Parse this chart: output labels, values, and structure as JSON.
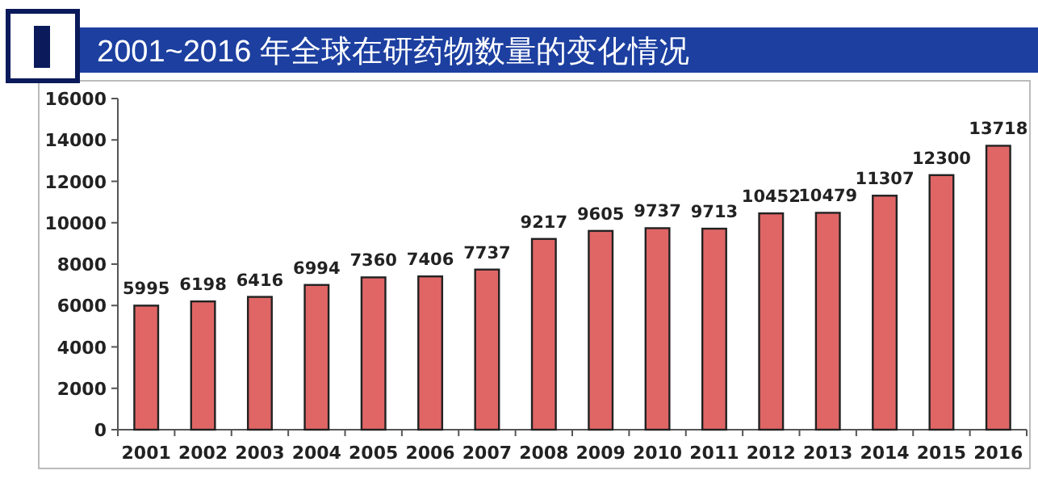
{
  "chart_data": {
    "type": "bar",
    "title": "2001~2016 年全球在研药物数量的变化情况",
    "categories": [
      "2001",
      "2002",
      "2003",
      "2004",
      "2005",
      "2006",
      "2007",
      "2008",
      "2009",
      "2010",
      "2011",
      "2012",
      "2013",
      "2014",
      "2015",
      "2016"
    ],
    "values": [
      5995,
      6198,
      6416,
      6994,
      7360,
      7406,
      7737,
      9217,
      9605,
      9737,
      9713,
      10452,
      10479,
      11307,
      12300,
      13718
    ],
    "color": "#e06666",
    "ylim": [
      0,
      16000
    ],
    "yticks": [
      0,
      2000,
      4000,
      6000,
      8000,
      10000,
      12000,
      14000,
      16000
    ],
    "data_labels": true,
    "grid": false
  }
}
